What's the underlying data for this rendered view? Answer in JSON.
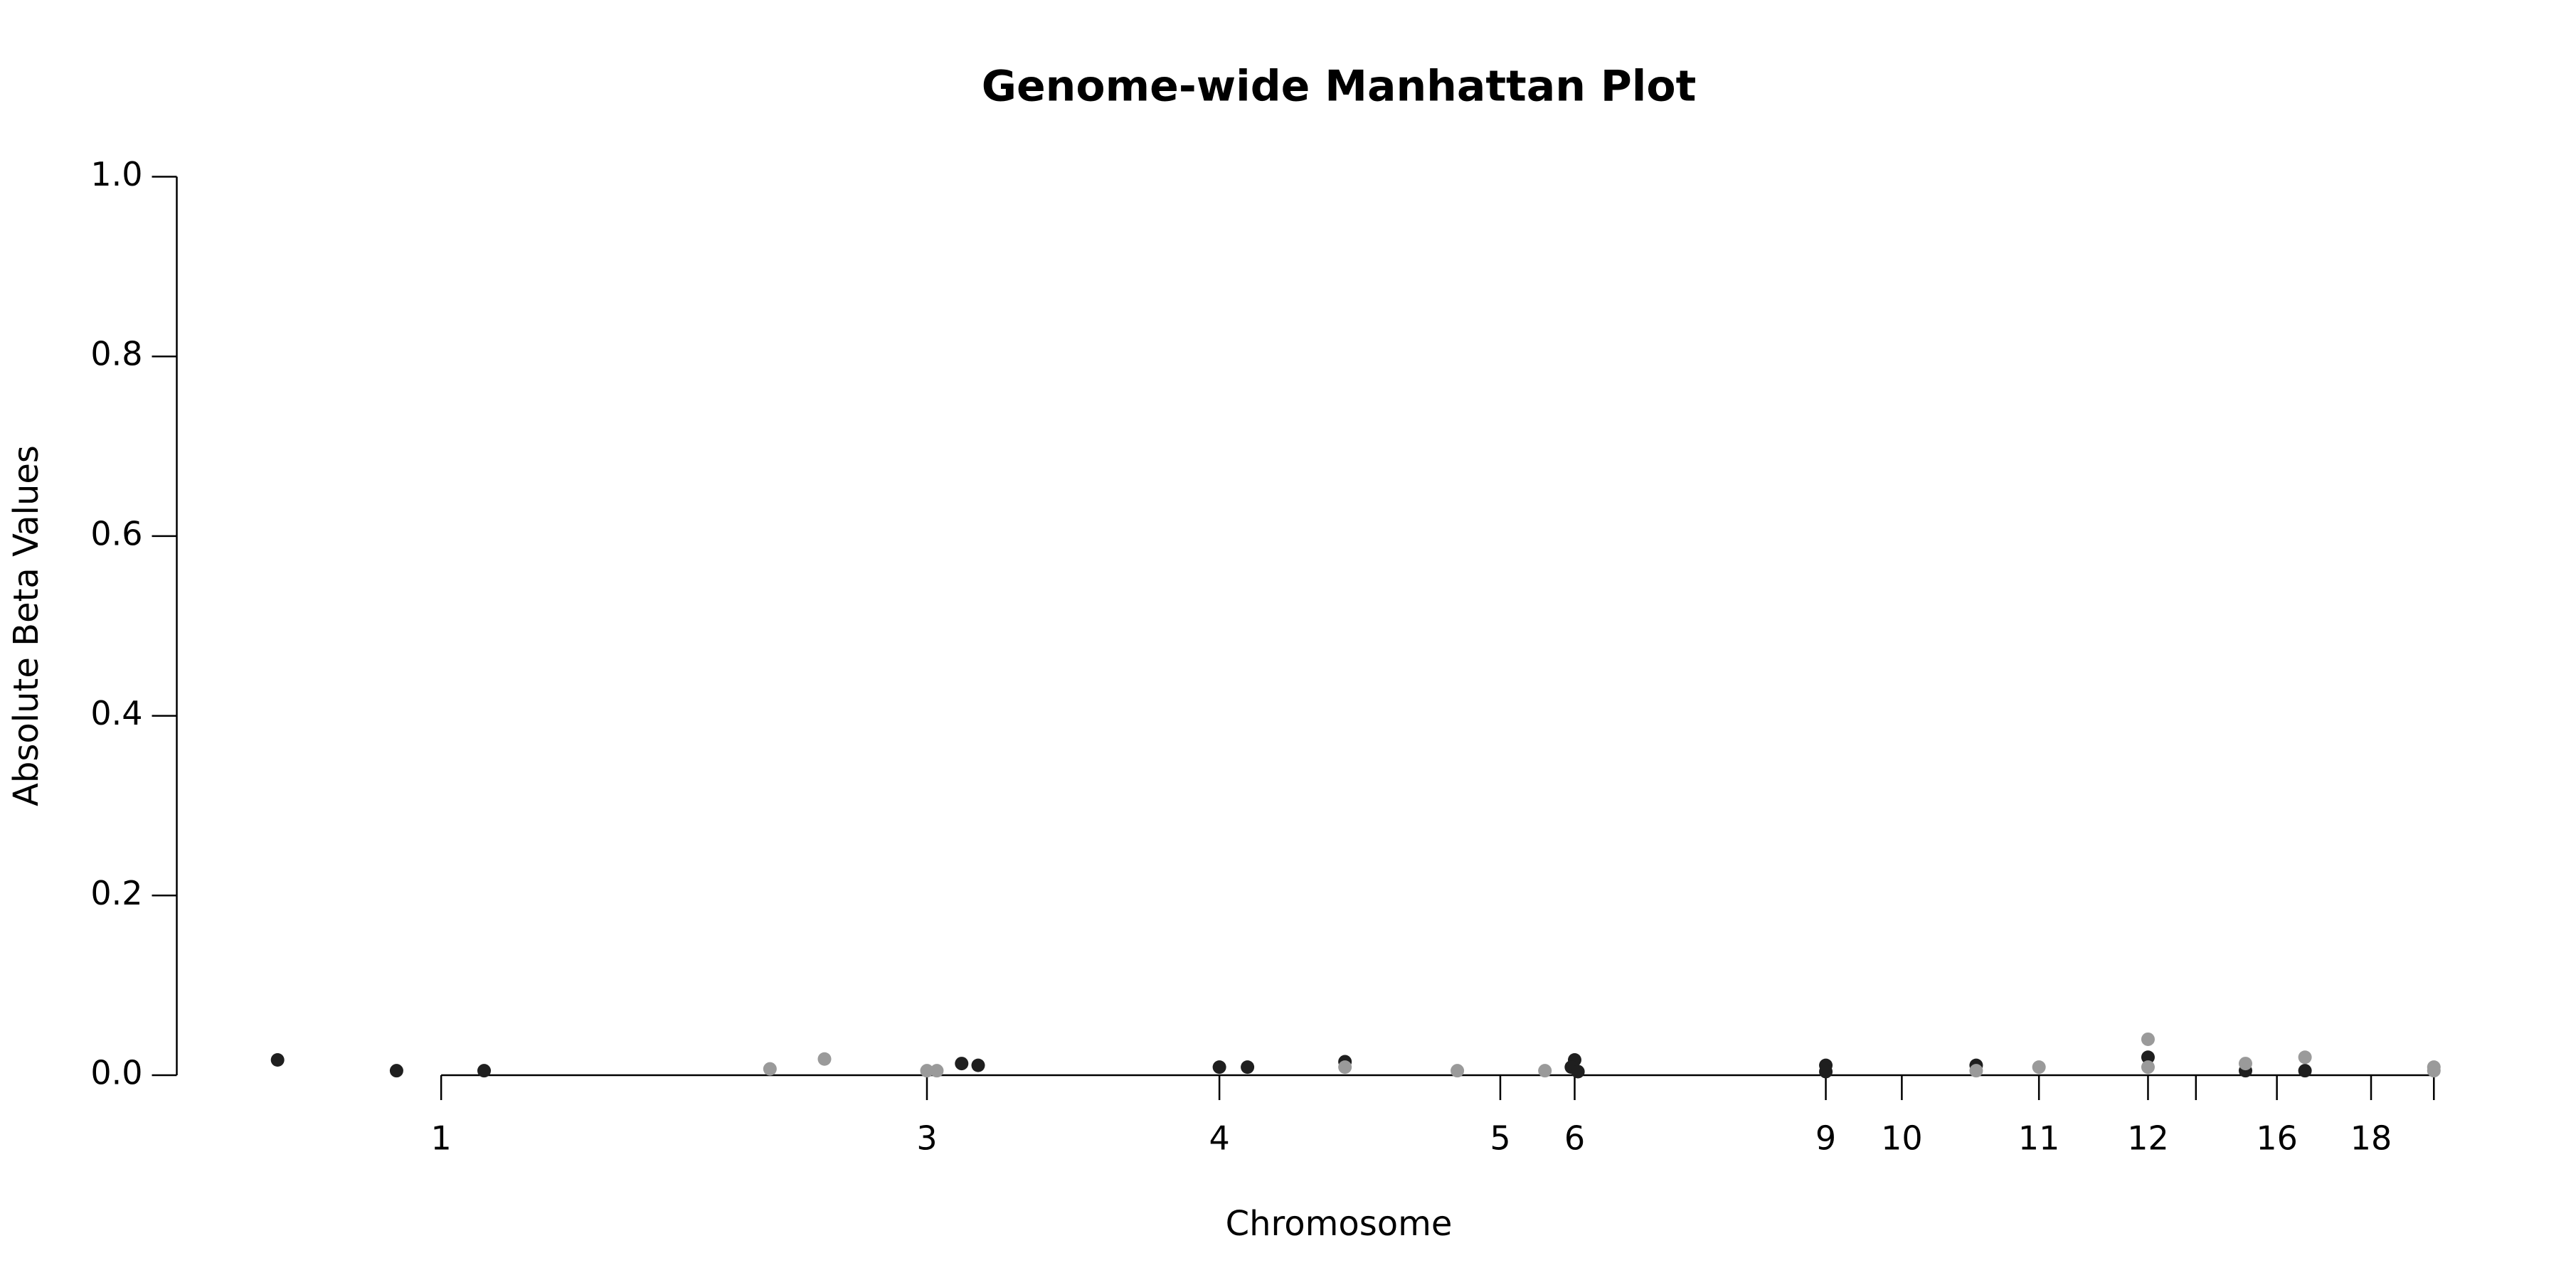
{
  "chart_data": {
    "type": "scatter",
    "title": "Genome-wide Manhattan Plot",
    "x_label": "Chromosome",
    "y_label": "Absolute Beta Values",
    "xlim": [
      0,
      1393
    ],
    "ylim": [
      0,
      1
    ],
    "xticks": [
      {
        "value": 160,
        "label": "1"
      },
      {
        "value": 454,
        "label": "3"
      },
      {
        "value": 631,
        "label": "4"
      },
      {
        "value": 801,
        "label": "5"
      },
      {
        "value": 846,
        "label": "6"
      },
      {
        "value": 998,
        "label": "9"
      },
      {
        "value": 1044,
        "label": "10"
      },
      {
        "value": 1127,
        "label": "11"
      },
      {
        "value": 1193,
        "label": "12"
      },
      {
        "value": 1222,
        "label": null
      },
      {
        "value": 1271,
        "label": "16"
      },
      {
        "value": 1328,
        "label": "18"
      },
      {
        "value": 1366,
        "label": null
      }
    ],
    "yticks": [
      {
        "value": 0,
        "label": "0.0"
      },
      0.2,
      0.4,
      0.6,
      0.8,
      {
        "value": 1,
        "label": "1.0"
      }
    ],
    "series": [
      {
        "color": "#1f1f1f",
        "x": [
          61,
          133,
          186,
          475,
          485,
          631,
          648,
          707,
          846,
          844,
          848,
          998,
          998,
          1089,
          1193,
          1252,
          1288
        ],
        "values": [
          0.017,
          0.005,
          0.005,
          0.013,
          0.011,
          0.009,
          0.009,
          0.015,
          0.017,
          0.009,
          0.004,
          0.011,
          0.004,
          0.011,
          0.02,
          0.005,
          0.005
        ]
      },
      {
        "color": "#9a9a9a",
        "x": [
          359,
          392,
          454,
          460,
          707,
          775,
          828,
          1089,
          1127,
          1193,
          1193,
          1252,
          1288,
          1366,
          1366
        ],
        "values": [
          0.007,
          0.018,
          0.005,
          0.005,
          0.009,
          0.005,
          0.005,
          0.005,
          0.009,
          0.04,
          0.009,
          0.013,
          0.02,
          0.009,
          0.005
        ]
      }
    ]
  }
}
